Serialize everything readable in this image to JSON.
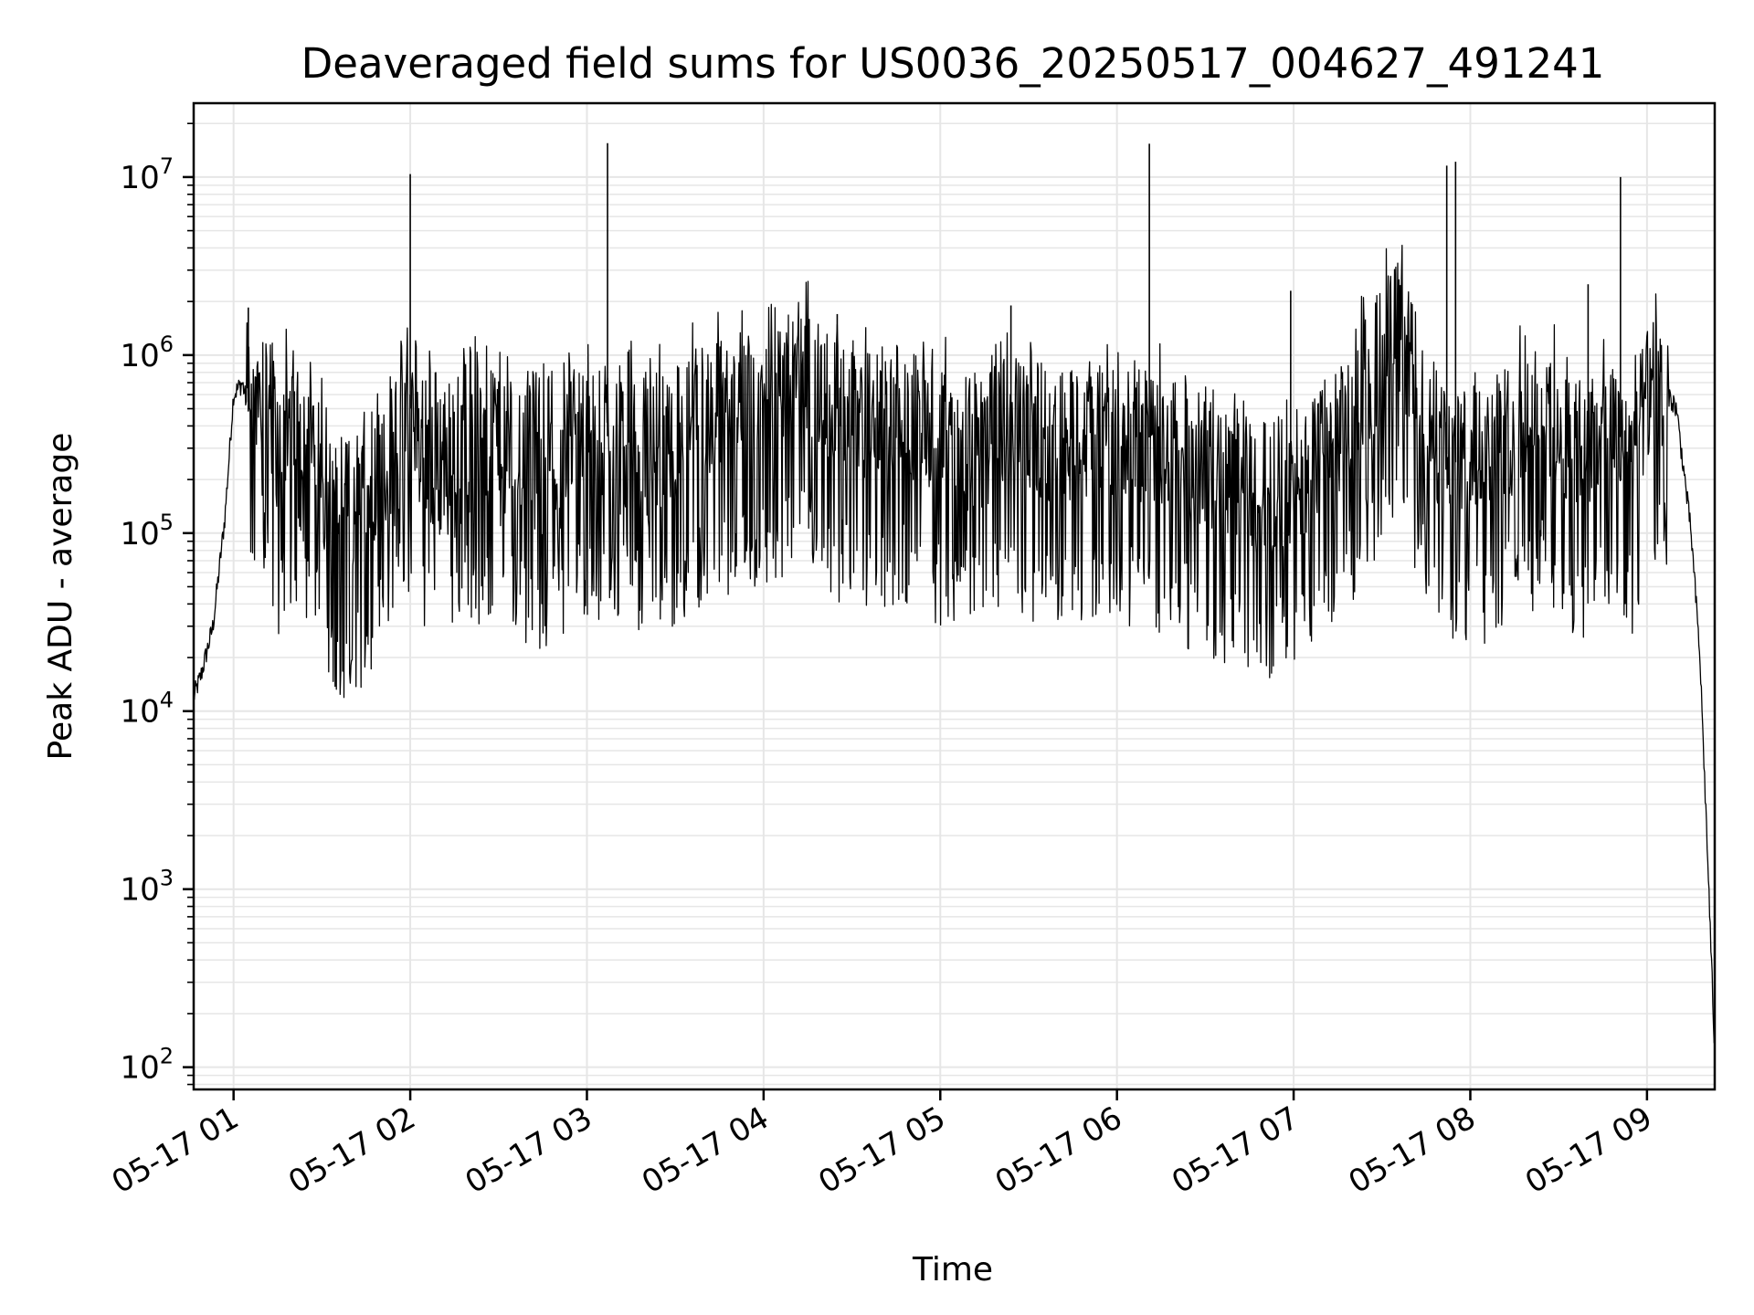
{
  "chart_data": {
    "type": "line",
    "title": "Deaveraged field sums for US0036_20250517_004627_491241",
    "xlabel": "Time",
    "ylabel": "Peak ADU - average",
    "yscale": "log",
    "ylim": [
      75,
      26000000.0
    ],
    "xlim": [
      "2025-05-17 00:46:27",
      "2025-05-17 09:23:00"
    ],
    "x_ticks": [
      {
        "value": "2025-05-17 01:00",
        "label": "05-17 01"
      },
      {
        "value": "2025-05-17 02:00",
        "label": "05-17 02"
      },
      {
        "value": "2025-05-17 03:00",
        "label": "05-17 03"
      },
      {
        "value": "2025-05-17 04:00",
        "label": "05-17 04"
      },
      {
        "value": "2025-05-17 05:00",
        "label": "05-17 05"
      },
      {
        "value": "2025-05-17 06:00",
        "label": "05-17 06"
      },
      {
        "value": "2025-05-17 07:00",
        "label": "05-17 07"
      },
      {
        "value": "2025-05-17 08:00",
        "label": "05-17 08"
      },
      {
        "value": "2025-05-17 09:00",
        "label": "05-17 09"
      }
    ],
    "y_ticks": [
      {
        "value": 100,
        "base": "10",
        "exp": "2"
      },
      {
        "value": 1000,
        "base": "10",
        "exp": "3"
      },
      {
        "value": 10000,
        "base": "10",
        "exp": "4"
      },
      {
        "value": 100000,
        "base": "10",
        "exp": "5"
      },
      {
        "value": 1000000,
        "base": "10",
        "exp": "6"
      },
      {
        "value": 10000000,
        "base": "10",
        "exp": "7"
      }
    ],
    "grid": true,
    "line_color": "#000000",
    "grid_color": "#e6e6e6",
    "series": [
      {
        "x": [
          "2025-05-17 00:46:27",
          "2025-05-17 00:49",
          "2025-05-17 00:53",
          "2025-05-17 00:57",
          "2025-05-17 01:00",
          "2025-05-17 01:03",
          "2025-05-17 01:06",
          "2025-05-17 01:09",
          "2025-05-17 01:12",
          "2025-05-17 01:15",
          "2025-05-17 01:18",
          "2025-05-17 01:22",
          "2025-05-17 01:27",
          "2025-05-17 01:33",
          "2025-05-17 01:40",
          "2025-05-17 01:47",
          "2025-05-17 01:54",
          "2025-05-17 02:00",
          "2025-05-17 02:07",
          "2025-05-17 02:14",
          "2025-05-17 02:21",
          "2025-05-17 02:28",
          "2025-05-17 02:35",
          "2025-05-17 02:42",
          "2025-05-17 02:49",
          "2025-05-17 02:56",
          "2025-05-17 03:07",
          "2025-05-17 03:14",
          "2025-05-17 03:21",
          "2025-05-17 03:28",
          "2025-05-17 03:35",
          "2025-05-17 03:42",
          "2025-05-17 03:49",
          "2025-05-17 03:56",
          "2025-05-17 04:05",
          "2025-05-17 04:15",
          "2025-05-17 04:25",
          "2025-05-17 04:35",
          "2025-05-17 04:45",
          "2025-05-17 04:55",
          "2025-05-17 05:05",
          "2025-05-17 05:12",
          "2025-05-17 05:20",
          "2025-05-17 05:30",
          "2025-05-17 05:40",
          "2025-05-17 05:50",
          "2025-05-17 06:00",
          "2025-05-17 06:10",
          "2025-05-17 06:20",
          "2025-05-17 06:30",
          "2025-05-17 06:40",
          "2025-05-17 06:50",
          "2025-05-17 07:00",
          "2025-05-17 07:10",
          "2025-05-17 07:20",
          "2025-05-17 07:28",
          "2025-05-17 07:35",
          "2025-05-17 07:42",
          "2025-05-17 07:50",
          "2025-05-17 07:55",
          "2025-05-17 08:05",
          "2025-05-17 08:15",
          "2025-05-17 08:25",
          "2025-05-17 08:33",
          "2025-05-17 08:40",
          "2025-05-17 08:47",
          "2025-05-17 08:55",
          "2025-05-17 09:00",
          "2025-05-17 09:05",
          "2025-05-17 09:10",
          "2025-05-17 09:15",
          "2025-05-17 09:18",
          "2025-05-17 09:21",
          "2025-05-17 09:23"
        ],
        "y": [
          12000,
          16000,
          30000,
          120000,
          600000,
          700000,
          400000,
          800000,
          600000,
          300000,
          400000,
          500000,
          300000,
          150000,
          140000,
          200000,
          300000,
          500000,
          300000,
          250000,
          400000,
          350000,
          300000,
          250000,
          300000,
          400000,
          350000,
          400000,
          300000,
          350000,
          450000,
          500000,
          550000,
          600000,
          700000,
          800000,
          500000,
          450000,
          500000,
          400000,
          350000,
          300000,
          400000,
          400000,
          350000,
          350000,
          400000,
          350000,
          300000,
          250000,
          200000,
          180000,
          200000,
          300000,
          500000,
          900000,
          1500000,
          700000,
          300000,
          250000,
          300000,
          400000,
          500000,
          350000,
          300000,
          400000,
          300000,
          600000,
          700000,
          500000,
          100000,
          20000,
          1000,
          120
        ]
      }
    ],
    "spikes": [
      {
        "x": "2025-05-17 01:05",
        "y": 1850000
      },
      {
        "x": "2025-05-17 02:00",
        "y": 10400000
      },
      {
        "x": "2025-05-17 03:07",
        "y": 15500000
      },
      {
        "x": "2025-05-17 04:25",
        "y": 1700000
      },
      {
        "x": "2025-05-17 05:24",
        "y": 1900000
      },
      {
        "x": "2025-05-17 06:11",
        "y": 15400000
      },
      {
        "x": "2025-05-17 06:59",
        "y": 2300000
      },
      {
        "x": "2025-05-17 07:52",
        "y": 11600000
      },
      {
        "x": "2025-05-17 07:55",
        "y": 12200000
      },
      {
        "x": "2025-05-17 08:40",
        "y": 2500000
      },
      {
        "x": "2025-05-17 08:51",
        "y": 10000000
      }
    ]
  }
}
